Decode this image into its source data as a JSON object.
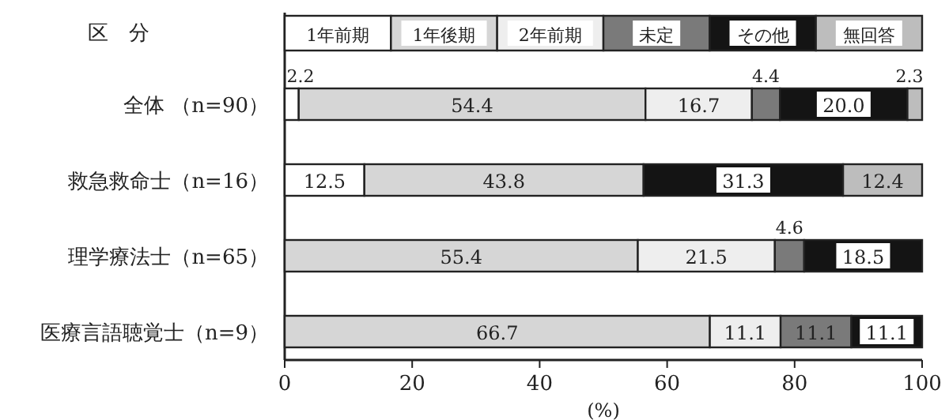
{
  "chart_data": {
    "type": "bar",
    "orientation": "horizontal",
    "stacked": true,
    "legend_title": "区　分",
    "xlabel": "(%)",
    "categories": [
      "全体 （n=90）",
      "救急救命士（n=16）",
      "理学療法士（n=65）",
      "医療言語聴覚士（n=9）"
    ],
    "series": [
      {
        "name": "1年前期",
        "color": "#ffffff",
        "values": [
          2.2,
          12.5,
          null,
          null
        ],
        "value_labels": [
          "2.2",
          "12.5",
          null,
          null
        ]
      },
      {
        "name": "1年後期",
        "color": "#d6d6d6",
        "values": [
          54.4,
          43.8,
          55.4,
          66.7
        ],
        "value_labels": [
          "54.4",
          "43.8",
          "55.4",
          "66.7"
        ]
      },
      {
        "name": "2年前期",
        "color": "#eeeeee",
        "values": [
          16.7,
          null,
          21.5,
          11.1
        ],
        "value_labels": [
          "16.7",
          null,
          "21.5",
          "11.1"
        ]
      },
      {
        "name": "未定",
        "color": "#7a7a7a",
        "values": [
          4.4,
          null,
          4.6,
          11.1
        ],
        "value_labels": [
          "4.4",
          null,
          "4.6",
          "11.1"
        ]
      },
      {
        "name": "その他",
        "color": "#141414",
        "values": [
          20.0,
          31.3,
          18.5,
          11.1
        ],
        "value_labels": [
          "20.0",
          "31.3",
          "18.5",
          "11.1"
        ]
      },
      {
        "name": "無回答",
        "color": "#bdbdbd",
        "values": [
          2.3,
          12.4,
          null,
          null
        ],
        "value_labels": [
          "2.3",
          "12.4",
          null,
          null
        ]
      }
    ],
    "xlim": [
      0,
      100
    ],
    "xticks": [
      0,
      20,
      40,
      60,
      80,
      100
    ],
    "legend": "top"
  }
}
